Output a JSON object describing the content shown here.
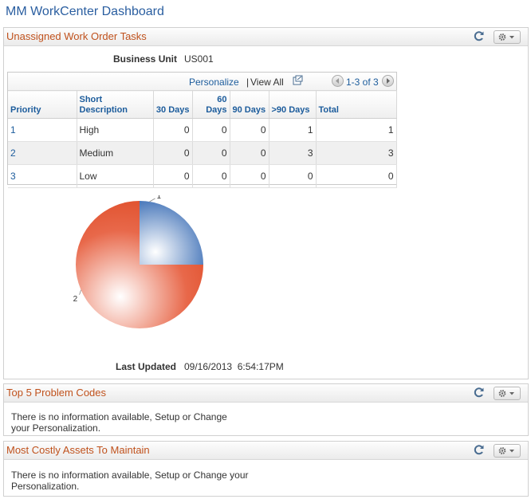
{
  "page_title": "MM WorkCenter Dashboard",
  "pagelets": {
    "unassigned": {
      "title": "Unassigned Work Order Tasks",
      "business_unit_label": "Business Unit",
      "business_unit_value": "US001",
      "grid_nav": {
        "personalize": "Personalize",
        "separator": "|",
        "view_all": "View All",
        "range": "1-3 of 3"
      },
      "columns": [
        "Priority",
        "Short Description",
        "30 Days",
        "60 Days",
        "90 Days",
        ">90 Days",
        "Total"
      ],
      "rows": [
        {
          "priority": "1",
          "desc": "High",
          "d30": "0",
          "d60": "0",
          "d90": "0",
          "d90p": "1",
          "total": "1"
        },
        {
          "priority": "2",
          "desc": "Medium",
          "d30": "0",
          "d60": "0",
          "d90": "0",
          "d90p": "3",
          "total": "3"
        },
        {
          "priority": "3",
          "desc": "Low",
          "d30": "0",
          "d60": "0",
          "d90": "0",
          "d90p": "0",
          "total": "0"
        }
      ],
      "last_updated_label": "Last Updated",
      "last_updated_value": "09/16/2013  6:54:17PM"
    },
    "problem_codes": {
      "title": "Top 5 Problem Codes",
      "message_line1": "There is no information available, Setup or Change",
      "message_line2": "your Personalization."
    },
    "costly_assets": {
      "title": "Most Costly Assets To Maintain",
      "message_line1": "There is no information available, Setup or Change your",
      "message_line2": "Personalization."
    }
  },
  "chart_data": {
    "type": "pie",
    "categories": [
      "1",
      "2"
    ],
    "values": [
      1,
      3
    ],
    "colors": [
      "#3a6db5",
      "#e0502c"
    ],
    "title": ""
  },
  "icons": [
    "refresh-icon",
    "gear-icon",
    "chevron-down-icon",
    "new-window-icon",
    "prev-arrow-icon",
    "next-arrow-icon"
  ]
}
